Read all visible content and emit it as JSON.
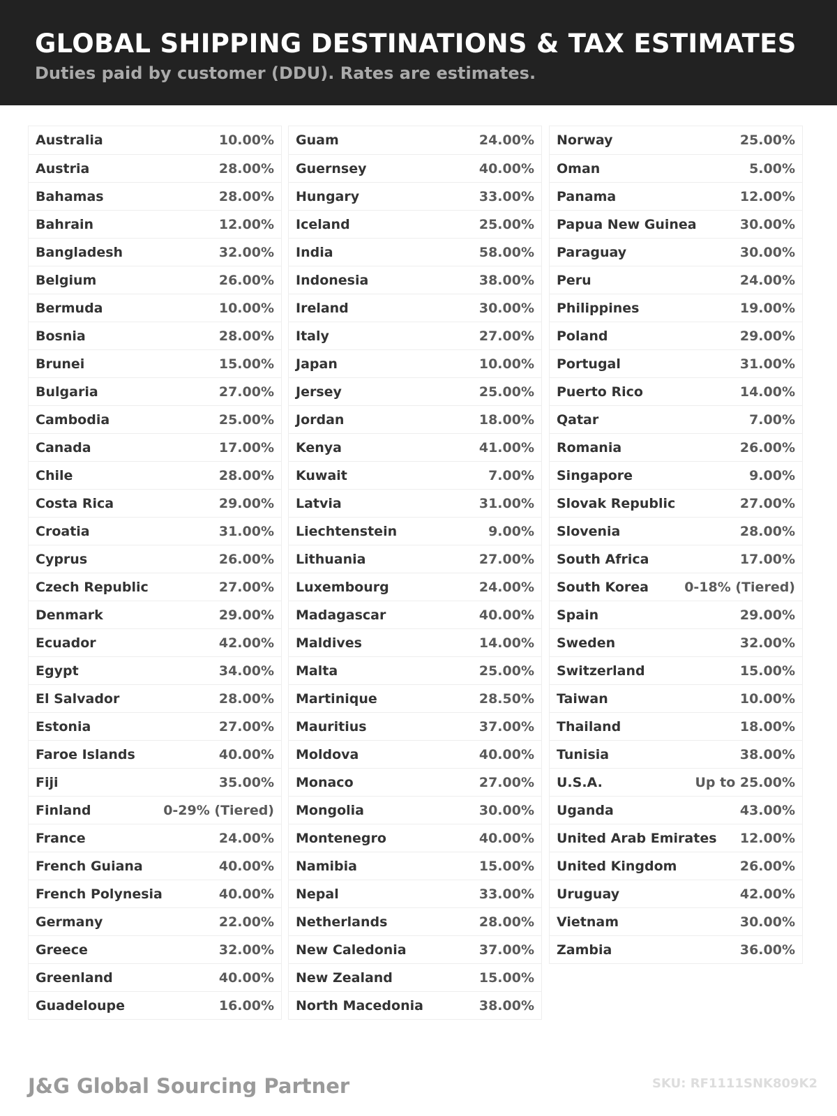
{
  "header": {
    "title": "GLOBAL SHIPPING DESTINATIONS & TAX ESTIMATES",
    "subtitle": "Duties paid by customer (DDU). Rates are estimates."
  },
  "columns": [
    [
      [
        "Australia",
        "10.00%"
      ],
      [
        "Austria",
        "28.00%"
      ],
      [
        "Bahamas",
        "28.00%"
      ],
      [
        "Bahrain",
        "12.00%"
      ],
      [
        "Bangladesh",
        "32.00%"
      ],
      [
        "Belgium",
        "26.00%"
      ],
      [
        "Bermuda",
        "10.00%"
      ],
      [
        "Bosnia",
        "28.00%"
      ],
      [
        "Brunei",
        "15.00%"
      ],
      [
        "Bulgaria",
        "27.00%"
      ],
      [
        "Cambodia",
        "25.00%"
      ],
      [
        "Canada",
        "17.00%"
      ],
      [
        "Chile",
        "28.00%"
      ],
      [
        "Costa Rica",
        "29.00%"
      ],
      [
        "Croatia",
        "31.00%"
      ],
      [
        "Cyprus",
        "26.00%"
      ],
      [
        "Czech Republic",
        "27.00%"
      ],
      [
        "Denmark",
        "29.00%"
      ],
      [
        "Ecuador",
        "42.00%"
      ],
      [
        "Egypt",
        "34.00%"
      ],
      [
        "El Salvador",
        "28.00%"
      ],
      [
        "Estonia",
        "27.00%"
      ],
      [
        "Faroe Islands",
        "40.00%"
      ],
      [
        "Fiji",
        "35.00%"
      ],
      [
        "Finland",
        "0-29% (Tiered)"
      ],
      [
        "France",
        "24.00%"
      ],
      [
        "French Guiana",
        "40.00%"
      ],
      [
        "French Polynesia",
        "40.00%"
      ],
      [
        "Germany",
        "22.00%"
      ],
      [
        "Greece",
        "32.00%"
      ],
      [
        "Greenland",
        "40.00%"
      ],
      [
        "Guadeloupe",
        "16.00%"
      ]
    ],
    [
      [
        "Guam",
        "24.00%"
      ],
      [
        "Guernsey",
        "40.00%"
      ],
      [
        "Hungary",
        "33.00%"
      ],
      [
        "Iceland",
        "25.00%"
      ],
      [
        "India",
        "58.00%"
      ],
      [
        "Indonesia",
        "38.00%"
      ],
      [
        "Ireland",
        "30.00%"
      ],
      [
        "Italy",
        "27.00%"
      ],
      [
        "Japan",
        "10.00%"
      ],
      [
        "Jersey",
        "25.00%"
      ],
      [
        "Jordan",
        "18.00%"
      ],
      [
        "Kenya",
        "41.00%"
      ],
      [
        "Kuwait",
        "7.00%"
      ],
      [
        "Latvia",
        "31.00%"
      ],
      [
        "Liechtenstein",
        "9.00%"
      ],
      [
        "Lithuania",
        "27.00%"
      ],
      [
        "Luxembourg",
        "24.00%"
      ],
      [
        "Madagascar",
        "40.00%"
      ],
      [
        "Maldives",
        "14.00%"
      ],
      [
        "Malta",
        "25.00%"
      ],
      [
        "Martinique",
        "28.50%"
      ],
      [
        "Mauritius",
        "37.00%"
      ],
      [
        "Moldova",
        "40.00%"
      ],
      [
        "Monaco",
        "27.00%"
      ],
      [
        "Mongolia",
        "30.00%"
      ],
      [
        "Montenegro",
        "40.00%"
      ],
      [
        "Namibia",
        "15.00%"
      ],
      [
        "Nepal",
        "33.00%"
      ],
      [
        "Netherlands",
        "28.00%"
      ],
      [
        "New Caledonia",
        "37.00%"
      ],
      [
        "New Zealand",
        "15.00%"
      ],
      [
        "North Macedonia",
        "38.00%"
      ]
    ],
    [
      [
        "Norway",
        "25.00%"
      ],
      [
        "Oman",
        "5.00%"
      ],
      [
        "Panama",
        "12.00%"
      ],
      [
        "Papua New Guinea",
        "30.00%"
      ],
      [
        "Paraguay",
        "30.00%"
      ],
      [
        "Peru",
        "24.00%"
      ],
      [
        "Philippines",
        "19.00%"
      ],
      [
        "Poland",
        "29.00%"
      ],
      [
        "Portugal",
        "31.00%"
      ],
      [
        "Puerto Rico",
        "14.00%"
      ],
      [
        "Qatar",
        "7.00%"
      ],
      [
        "Romania",
        "26.00%"
      ],
      [
        "Singapore",
        "9.00%"
      ],
      [
        "Slovak Republic",
        "27.00%"
      ],
      [
        "Slovenia",
        "28.00%"
      ],
      [
        "South Africa",
        "17.00%"
      ],
      [
        "South Korea",
        "0-18% (Tiered)"
      ],
      [
        "Spain",
        "29.00%"
      ],
      [
        "Sweden",
        "32.00%"
      ],
      [
        "Switzerland",
        "15.00%"
      ],
      [
        "Taiwan",
        "10.00%"
      ],
      [
        "Thailand",
        "18.00%"
      ],
      [
        "Tunisia",
        "38.00%"
      ],
      [
        "U.S.A.",
        "Up to 25.00%"
      ],
      [
        "Uganda",
        "43.00%"
      ],
      [
        "United Arab Emirates",
        "12.00%"
      ],
      [
        "United Kingdom",
        "26.00%"
      ],
      [
        "Uruguay",
        "42.00%"
      ],
      [
        "Vietnam",
        "30.00%"
      ],
      [
        "Zambia",
        "36.00%"
      ]
    ]
  ],
  "footer": {
    "brand": "J&G Global Sourcing Partner",
    "sku": "SKU: RF1111SNK809K2"
  }
}
